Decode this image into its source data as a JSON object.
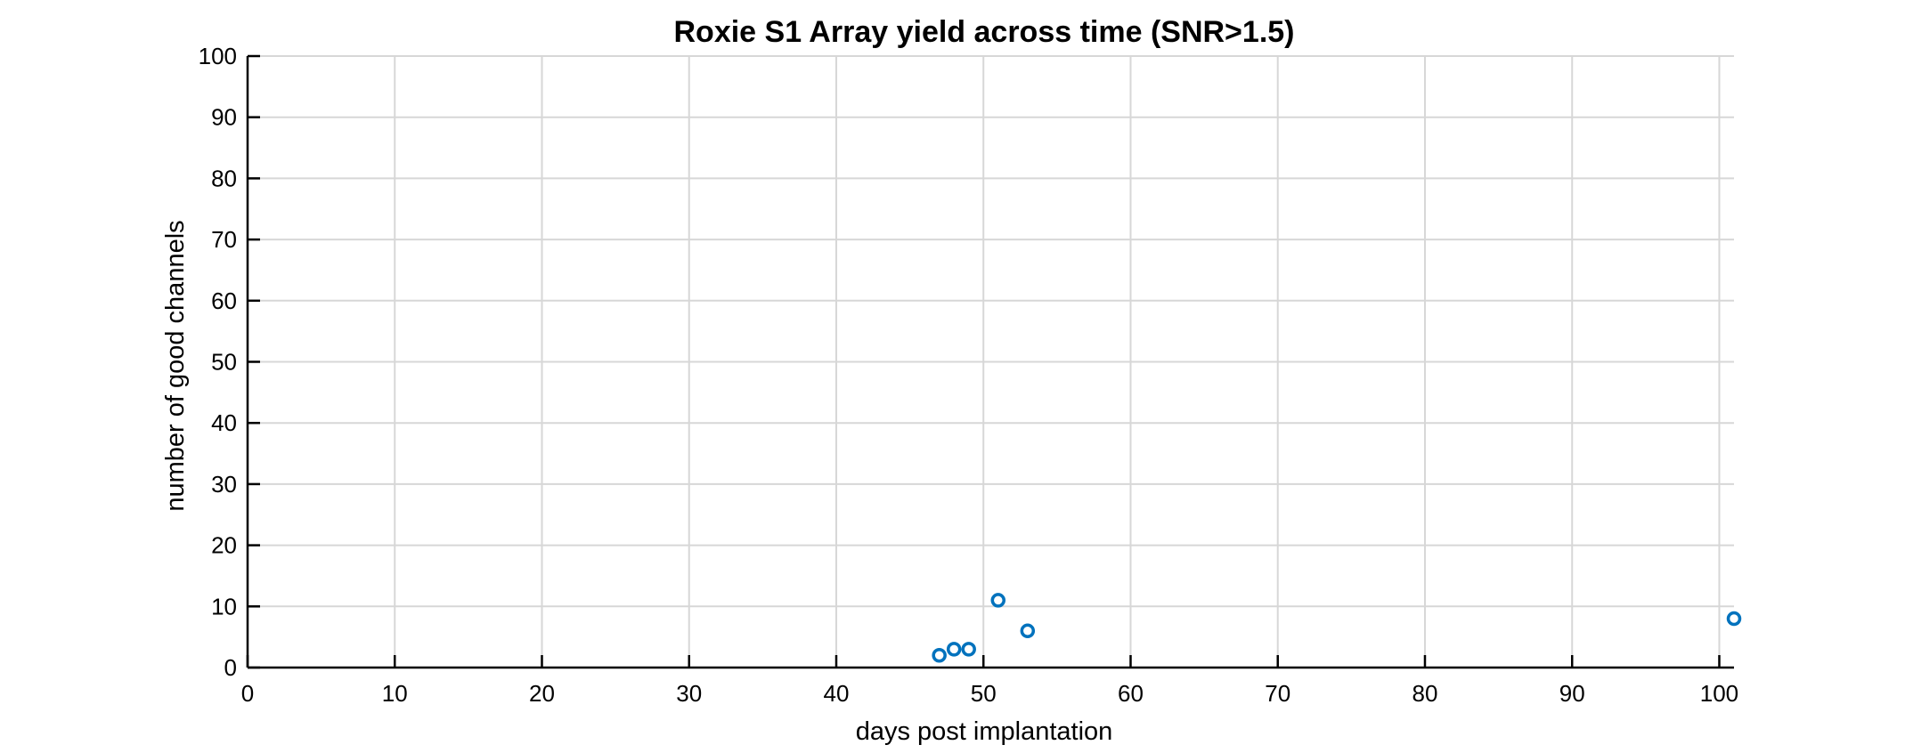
{
  "chart_data": {
    "type": "scatter",
    "title": "Roxie S1 Array yield across time (SNR>1.5)",
    "xlabel": "days post implantation",
    "ylabel": "number of good channels",
    "xlim": [
      0,
      101
    ],
    "ylim": [
      0,
      100
    ],
    "xticks": [
      0,
      10,
      20,
      30,
      40,
      50,
      60,
      70,
      80,
      90,
      100
    ],
    "yticks": [
      0,
      10,
      20,
      30,
      40,
      50,
      60,
      70,
      80,
      90,
      100
    ],
    "grid": true,
    "marker": "open-circle",
    "series": [
      {
        "color": "#0072BD",
        "x": [
          47,
          48,
          49,
          51,
          53,
          101
        ],
        "y": [
          2,
          3,
          3,
          11,
          6,
          8
        ]
      }
    ]
  }
}
